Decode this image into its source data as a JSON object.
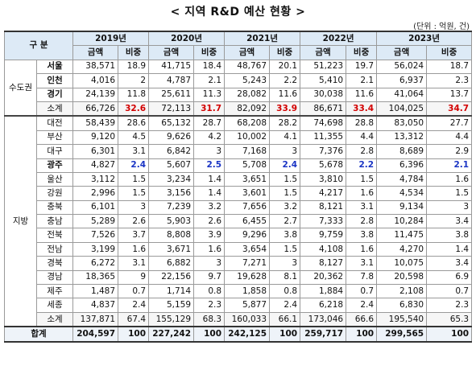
{
  "title": "< 지역 R&D 예산 현황 >",
  "unit": "(단위 : 억원, 건)",
  "header": {
    "category": "구 분",
    "years": [
      "2019년",
      "2020년",
      "2021년",
      "2022년",
      "2023년"
    ],
    "amount": "금액",
    "share": "비중"
  },
  "groups": {
    "capital": "수도권",
    "local": "지방",
    "total": "합계"
  },
  "rows": [
    {
      "region": "서울",
      "bold": true,
      "values": [
        "38,571",
        "18.9",
        "41,715",
        "18.4",
        "48,767",
        "20.1",
        "51,223",
        "19.7",
        "56,024",
        "18.7"
      ]
    },
    {
      "region": "인천",
      "bold": true,
      "values": [
        "4,016",
        "2",
        "4,787",
        "2.1",
        "5,243",
        "2.2",
        "5,410",
        "2.1",
        "6,937",
        "2.3"
      ]
    },
    {
      "region": "경기",
      "bold": true,
      "values": [
        "24,139",
        "11.8",
        "25,611",
        "11.3",
        "28,082",
        "11.6",
        "30,038",
        "11.6",
        "41,064",
        "13.7"
      ]
    },
    {
      "region": "소계",
      "values": [
        "66,726",
        "32.6",
        "72,113",
        "31.7",
        "82,092",
        "33.9",
        "86,671",
        "33.4",
        "104,025",
        "34.7"
      ]
    },
    {
      "region": "대전",
      "values": [
        "58,439",
        "28.6",
        "65,132",
        "28.7",
        "68,208",
        "28.2",
        "74,698",
        "28.8",
        "83,050",
        "27.7"
      ]
    },
    {
      "region": "부산",
      "values": [
        "9,120",
        "4.5",
        "9,626",
        "4.2",
        "10,002",
        "4.1",
        "11,355",
        "4.4",
        "13,312",
        "4.4"
      ]
    },
    {
      "region": "대구",
      "values": [
        "6,301",
        "3.1",
        "6,842",
        "3",
        "7,168",
        "3",
        "7,376",
        "2.8",
        "8,689",
        "2.9"
      ]
    },
    {
      "region": "광주",
      "bold": true,
      "values": [
        "4,827",
        "2.4",
        "5,607",
        "2.5",
        "5,708",
        "2.4",
        "5,678",
        "2.2",
        "6,396",
        "2.1"
      ]
    },
    {
      "region": "울산",
      "values": [
        "3,112",
        "1.5",
        "3,234",
        "1.4",
        "3,651",
        "1.5",
        "3,810",
        "1.5",
        "4,784",
        "1.6"
      ]
    },
    {
      "region": "강원",
      "values": [
        "2,996",
        "1.5",
        "3,156",
        "1.4",
        "3,601",
        "1.5",
        "4,217",
        "1.6",
        "4,534",
        "1.5"
      ]
    },
    {
      "region": "충북",
      "values": [
        "6,101",
        "3",
        "7,239",
        "3.2",
        "7,656",
        "3.2",
        "8,121",
        "3.1",
        "9,134",
        "3"
      ]
    },
    {
      "region": "충남",
      "values": [
        "5,289",
        "2.6",
        "5,903",
        "2.6",
        "6,455",
        "2.7",
        "7,333",
        "2.8",
        "10,284",
        "3.4"
      ]
    },
    {
      "region": "전북",
      "values": [
        "7,526",
        "3.7",
        "8,808",
        "3.9",
        "9,296",
        "3.8",
        "9,759",
        "3.8",
        "11,475",
        "3.8"
      ]
    },
    {
      "region": "전남",
      "values": [
        "3,199",
        "1.6",
        "3,671",
        "1.6",
        "3,654",
        "1.5",
        "4,108",
        "1.6",
        "4,270",
        "1.4"
      ]
    },
    {
      "region": "경북",
      "values": [
        "6,272",
        "3.1",
        "6,882",
        "3",
        "7,271",
        "3",
        "8,127",
        "3.1",
        "10,075",
        "3.4"
      ]
    },
    {
      "region": "경남",
      "values": [
        "18,365",
        "9",
        "22,156",
        "9.7",
        "19,628",
        "8.1",
        "20,362",
        "7.8",
        "20,598",
        "6.9"
      ]
    },
    {
      "region": "제주",
      "values": [
        "1,487",
        "0.7",
        "1,714",
        "0.8",
        "1,858",
        "0.8",
        "1,884",
        "0.7",
        "2,108",
        "0.7"
      ]
    },
    {
      "region": "세종",
      "values": [
        "4,837",
        "2.4",
        "5,159",
        "2.3",
        "5,877",
        "2.4",
        "6,218",
        "2.4",
        "6,830",
        "2.3"
      ]
    },
    {
      "region": "소계",
      "values": [
        "137,871",
        "67.4",
        "155,129",
        "68.3",
        "160,033",
        "66.1",
        "173,046",
        "66.6",
        "195,540",
        "65.3"
      ]
    }
  ],
  "total_values": [
    "204,597",
    "100",
    "227,242",
    "100",
    "242,125",
    "100",
    "259,717",
    "100",
    "299,565",
    "100"
  ],
  "colors": {
    "header_bg": "#ddeaf6",
    "highlight_red": "#d20000",
    "highlight_blue": "#1a34c4"
  }
}
